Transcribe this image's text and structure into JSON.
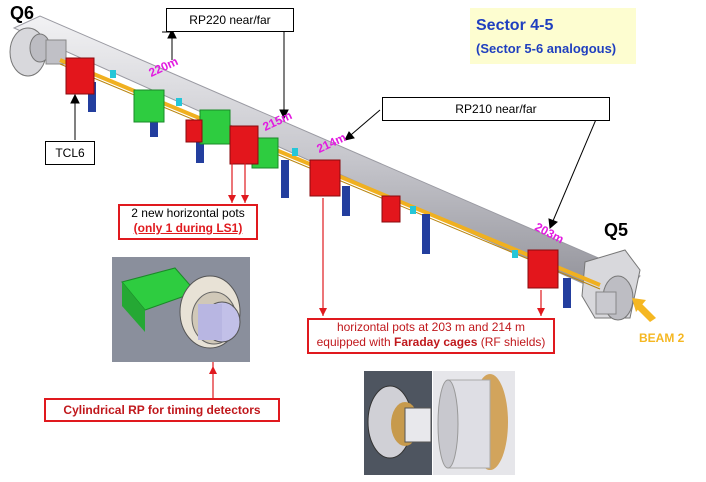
{
  "labels": {
    "q6": "Q6",
    "q5": "Q5",
    "tcl6": "TCL6",
    "rp220": "RP220 near/far",
    "rp210": "RP210 near/far",
    "beam2": "BEAM 2"
  },
  "sector": {
    "title": "Sector 4-5",
    "subtitle": "(Sector 5-6 analogous)"
  },
  "distances": [
    "220m",
    "215m",
    "214m",
    "203m"
  ],
  "callouts": {
    "new_pots_line1": "2 new horizontal pots",
    "new_pots_line2": "(only 1 during LS1)",
    "faraday_line1": "horizontal pots at 203 m and 214 m",
    "faraday_line2_pre": "equipped with ",
    "faraday_line2_bold": "Faraday cages",
    "faraday_line2_post": " (RF shields)",
    "cylindrical": "Cylindrical RP for timing detectors"
  },
  "colors": {
    "pot_red": "#e3161c",
    "pot_green": "#2ecc40",
    "stand_blue": "#233e9e",
    "beam_pipe": "#c8c8cc",
    "beam_line": "#f0b020",
    "distance_magenta": "#e21be0",
    "callout_red": "#e0191e",
    "sector_blue": "#1f3fbf",
    "beam_yellow": "#f5b722"
  }
}
